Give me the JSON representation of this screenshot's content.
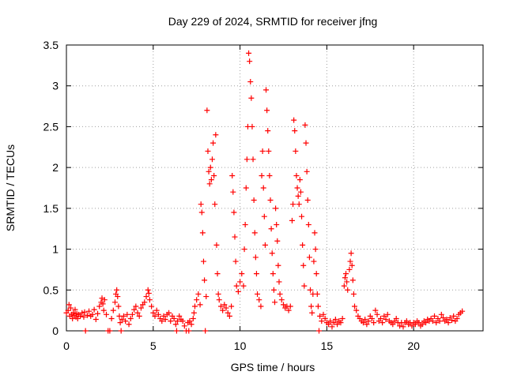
{
  "chart_data": {
    "type": "scatter",
    "title": "Day 229 of 2024, SRMTID for receiver jfng",
    "xlabel": "GPS time / hours",
    "ylabel": "SRMTID / TECUs",
    "xlim": [
      0,
      24
    ],
    "ylim": [
      0,
      3.5
    ],
    "xticks": [
      0,
      5,
      10,
      15,
      20
    ],
    "xtick_labels": [
      "0",
      "5",
      "10",
      "15",
      "20"
    ],
    "yticks": [
      0,
      0.5,
      1,
      1.5,
      2,
      2.5,
      3,
      3.5
    ],
    "ytick_labels": [
      "0",
      "0.5",
      "1",
      "1.5",
      "2",
      "2.5",
      "3",
      "3.5"
    ],
    "grid": true,
    "marker": "plus",
    "color": "#ff0000",
    "series": [
      {
        "name": "SRMTID",
        "points": [
          [
            0.0,
            0.22
          ],
          [
            0.1,
            0.25
          ],
          [
            0.15,
            0.32
          ],
          [
            0.2,
            0.18
          ],
          [
            0.25,
            0.28
          ],
          [
            0.3,
            0.2
          ],
          [
            0.35,
            0.15
          ],
          [
            0.4,
            0.22
          ],
          [
            0.45,
            0.19
          ],
          [
            0.5,
            0.26
          ],
          [
            0.55,
            0.17
          ],
          [
            0.6,
            0.21
          ],
          [
            0.65,
            0.15
          ],
          [
            0.7,
            0.2
          ],
          [
            0.8,
            0.18
          ],
          [
            0.9,
            0.22
          ],
          [
            1.0,
            0.17
          ],
          [
            1.05,
            0.23
          ],
          [
            1.1,
            0.0
          ],
          [
            1.2,
            0.19
          ],
          [
            1.3,
            0.24
          ],
          [
            1.4,
            0.18
          ],
          [
            1.5,
            0.2
          ],
          [
            1.6,
            0.26
          ],
          [
            1.7,
            0.14
          ],
          [
            1.8,
            0.21
          ],
          [
            1.9,
            0.3
          ],
          [
            2.0,
            0.35
          ],
          [
            2.05,
            0.4
          ],
          [
            2.1,
            0.33
          ],
          [
            2.15,
            0.25
          ],
          [
            2.2,
            0.38
          ],
          [
            2.3,
            0.2
          ],
          [
            2.4,
            0.0
          ],
          [
            2.5,
            0.0
          ],
          [
            2.6,
            0.15
          ],
          [
            2.7,
            0.25
          ],
          [
            2.8,
            0.35
          ],
          [
            2.85,
            0.45
          ],
          [
            2.9,
            0.5
          ],
          [
            2.95,
            0.42
          ],
          [
            3.0,
            0.3
          ],
          [
            3.05,
            0.18
          ],
          [
            3.1,
            0.1
          ],
          [
            3.15,
            0.0
          ],
          [
            3.2,
            0.14
          ],
          [
            3.3,
            0.18
          ],
          [
            3.4,
            0.12
          ],
          [
            3.5,
            0.2
          ],
          [
            3.6,
            0.08
          ],
          [
            3.7,
            0.15
          ],
          [
            3.8,
            0.2
          ],
          [
            3.9,
            0.26
          ],
          [
            4.0,
            0.3
          ],
          [
            4.1,
            0.22
          ],
          [
            4.2,
            0.18
          ],
          [
            4.3,
            0.28
          ],
          [
            4.4,
            0.32
          ],
          [
            4.5,
            0.35
          ],
          [
            4.6,
            0.42
          ],
          [
            4.7,
            0.5
          ],
          [
            4.75,
            0.46
          ],
          [
            4.8,
            0.38
          ],
          [
            4.9,
            0.3
          ],
          [
            5.0,
            0.22
          ],
          [
            5.1,
            0.18
          ],
          [
            5.2,
            0.25
          ],
          [
            5.3,
            0.2
          ],
          [
            5.4,
            0.15
          ],
          [
            5.5,
            0.12
          ],
          [
            5.6,
            0.18
          ],
          [
            5.7,
            0.14
          ],
          [
            5.8,
            0.2
          ],
          [
            5.9,
            0.22
          ],
          [
            6.0,
            0.12
          ],
          [
            6.1,
            0.18
          ],
          [
            6.2,
            0.15
          ],
          [
            6.3,
            0.08
          ],
          [
            6.35,
            0.0
          ],
          [
            6.4,
            0.12
          ],
          [
            6.5,
            0.18
          ],
          [
            6.6,
            0.14
          ],
          [
            6.7,
            0.12
          ],
          [
            6.8,
            0.06
          ],
          [
            6.9,
            0.0
          ],
          [
            7.0,
            0.1
          ],
          [
            7.05,
            0.0
          ],
          [
            7.1,
            0.12
          ],
          [
            7.2,
            0.08
          ],
          [
            7.3,
            0.15
          ],
          [
            7.35,
            0.22
          ],
          [
            7.4,
            0.3
          ],
          [
            7.5,
            0.38
          ],
          [
            7.6,
            0.45
          ],
          [
            7.7,
            0.32
          ],
          [
            7.75,
            1.55
          ],
          [
            7.8,
            1.45
          ],
          [
            7.85,
            1.2
          ],
          [
            7.9,
            0.85
          ],
          [
            7.95,
            0.62
          ],
          [
            8.0,
            0.0
          ],
          [
            8.05,
            0.42
          ],
          [
            8.1,
            2.7
          ],
          [
            8.15,
            2.2
          ],
          [
            8.2,
            1.95
          ],
          [
            8.25,
            1.8
          ],
          [
            8.3,
            2.0
          ],
          [
            8.35,
            1.85
          ],
          [
            8.4,
            2.1
          ],
          [
            8.45,
            2.3
          ],
          [
            8.5,
            1.9
          ],
          [
            8.55,
            1.55
          ],
          [
            8.6,
            2.4
          ],
          [
            8.65,
            1.05
          ],
          [
            8.7,
            0.7
          ],
          [
            8.75,
            0.45
          ],
          [
            8.8,
            0.38
          ],
          [
            8.9,
            0.3
          ],
          [
            9.0,
            0.25
          ],
          [
            9.1,
            0.32
          ],
          [
            9.2,
            0.28
          ],
          [
            9.3,
            0.22
          ],
          [
            9.4,
            0.18
          ],
          [
            9.5,
            0.3
          ],
          [
            9.55,
            1.9
          ],
          [
            9.6,
            1.7
          ],
          [
            9.65,
            1.45
          ],
          [
            9.7,
            1.15
          ],
          [
            9.75,
            0.85
          ],
          [
            9.8,
            0.55
          ],
          [
            9.9,
            0.48
          ],
          [
            10.0,
            0.6
          ],
          [
            10.1,
            0.7
          ],
          [
            10.2,
            0.55
          ],
          [
            10.25,
            1.0
          ],
          [
            10.3,
            1.3
          ],
          [
            10.35,
            1.75
          ],
          [
            10.4,
            2.1
          ],
          [
            10.45,
            2.5
          ],
          [
            10.5,
            3.4
          ],
          [
            10.55,
            3.3
          ],
          [
            10.6,
            3.05
          ],
          [
            10.65,
            2.85
          ],
          [
            10.7,
            2.5
          ],
          [
            10.75,
            2.1
          ],
          [
            10.8,
            1.6
          ],
          [
            10.85,
            1.2
          ],
          [
            10.9,
            0.9
          ],
          [
            10.95,
            0.7
          ],
          [
            11.0,
            0.45
          ],
          [
            11.1,
            0.38
          ],
          [
            11.2,
            0.3
          ],
          [
            11.25,
            1.9
          ],
          [
            11.3,
            2.2
          ],
          [
            11.35,
            1.75
          ],
          [
            11.4,
            1.4
          ],
          [
            11.45,
            1.05
          ],
          [
            11.5,
            2.95
          ],
          [
            11.55,
            2.7
          ],
          [
            11.6,
            2.45
          ],
          [
            11.65,
            2.2
          ],
          [
            11.7,
            1.9
          ],
          [
            11.75,
            1.6
          ],
          [
            11.8,
            1.25
          ],
          [
            11.85,
            0.95
          ],
          [
            11.9,
            0.7
          ],
          [
            11.95,
            0.5
          ],
          [
            12.0,
            0.35
          ],
          [
            12.05,
            1.5
          ],
          [
            12.1,
            1.3
          ],
          [
            12.15,
            1.1
          ],
          [
            12.2,
            0.8
          ],
          [
            12.25,
            0.6
          ],
          [
            12.3,
            0.45
          ],
          [
            12.4,
            0.38
          ],
          [
            12.5,
            0.32
          ],
          [
            12.6,
            0.28
          ],
          [
            12.7,
            0.3
          ],
          [
            12.8,
            0.25
          ],
          [
            12.9,
            0.3
          ],
          [
            13.0,
            1.35
          ],
          [
            13.05,
            1.55
          ],
          [
            13.1,
            2.58
          ],
          [
            13.15,
            2.45
          ],
          [
            13.2,
            2.2
          ],
          [
            13.25,
            1.9
          ],
          [
            13.3,
            1.75
          ],
          [
            13.35,
            1.65
          ],
          [
            13.4,
            1.55
          ],
          [
            13.45,
            1.85
          ],
          [
            13.5,
            1.7
          ],
          [
            13.55,
            1.4
          ],
          [
            13.6,
            1.05
          ],
          [
            13.65,
            0.8
          ],
          [
            13.7,
            0.55
          ],
          [
            13.75,
            2.52
          ],
          [
            13.8,
            2.3
          ],
          [
            13.85,
            1.95
          ],
          [
            13.9,
            1.6
          ],
          [
            13.95,
            1.3
          ],
          [
            14.0,
            0.9
          ],
          [
            14.05,
            0.5
          ],
          [
            14.1,
            0.3
          ],
          [
            14.15,
            0.22
          ],
          [
            14.2,
            0.45
          ],
          [
            14.25,
            0.85
          ],
          [
            14.3,
            1.2
          ],
          [
            14.35,
            1.0
          ],
          [
            14.4,
            0.7
          ],
          [
            14.45,
            0.45
          ],
          [
            14.5,
            0.3
          ],
          [
            14.55,
            0.0
          ],
          [
            14.6,
            0.18
          ],
          [
            14.7,
            0.12
          ],
          [
            14.8,
            0.2
          ],
          [
            14.9,
            0.15
          ],
          [
            15.0,
            0.1
          ],
          [
            15.1,
            0.08
          ],
          [
            15.2,
            0.12
          ],
          [
            15.3,
            0.05
          ],
          [
            15.4,
            0.1
          ],
          [
            15.5,
            0.14
          ],
          [
            15.6,
            0.08
          ],
          [
            15.7,
            0.12
          ],
          [
            15.8,
            0.1
          ],
          [
            15.9,
            0.15
          ],
          [
            16.0,
            0.55
          ],
          [
            16.05,
            0.65
          ],
          [
            16.1,
            0.7
          ],
          [
            16.15,
            0.6
          ],
          [
            16.2,
            0.5
          ],
          [
            16.3,
            0.75
          ],
          [
            16.35,
            0.85
          ],
          [
            16.4,
            0.95
          ],
          [
            16.45,
            0.8
          ],
          [
            16.5,
            0.62
          ],
          [
            16.55,
            0.45
          ],
          [
            16.6,
            0.3
          ],
          [
            16.7,
            0.25
          ],
          [
            16.8,
            0.18
          ],
          [
            16.9,
            0.15
          ],
          [
            17.0,
            0.12
          ],
          [
            17.1,
            0.1
          ],
          [
            17.2,
            0.14
          ],
          [
            17.3,
            0.08
          ],
          [
            17.4,
            0.12
          ],
          [
            17.5,
            0.18
          ],
          [
            17.6,
            0.15
          ],
          [
            17.7,
            0.1
          ],
          [
            17.8,
            0.25
          ],
          [
            17.9,
            0.2
          ],
          [
            18.0,
            0.12
          ],
          [
            18.1,
            0.15
          ],
          [
            18.2,
            0.1
          ],
          [
            18.3,
            0.18
          ],
          [
            18.4,
            0.14
          ],
          [
            18.5,
            0.2
          ],
          [
            18.6,
            0.12
          ],
          [
            18.7,
            0.1
          ],
          [
            18.8,
            0.08
          ],
          [
            18.9,
            0.12
          ],
          [
            19.0,
            0.15
          ],
          [
            19.1,
            0.1
          ],
          [
            19.2,
            0.06
          ],
          [
            19.3,
            0.1
          ],
          [
            19.4,
            0.05
          ],
          [
            19.5,
            0.1
          ],
          [
            19.6,
            0.12
          ],
          [
            19.7,
            0.08
          ],
          [
            19.8,
            0.1
          ],
          [
            19.9,
            0.06
          ],
          [
            20.0,
            0.1
          ],
          [
            20.1,
            0.08
          ],
          [
            20.2,
            0.12
          ],
          [
            20.3,
            0.1
          ],
          [
            20.4,
            0.06
          ],
          [
            20.5,
            0.08
          ],
          [
            20.6,
            0.12
          ],
          [
            20.7,
            0.1
          ],
          [
            20.8,
            0.14
          ],
          [
            20.9,
            0.12
          ],
          [
            21.0,
            0.15
          ],
          [
            21.1,
            0.12
          ],
          [
            21.2,
            0.18
          ],
          [
            21.3,
            0.1
          ],
          [
            21.4,
            0.15
          ],
          [
            21.5,
            0.12
          ],
          [
            21.6,
            0.2
          ],
          [
            21.7,
            0.16
          ],
          [
            21.8,
            0.12
          ],
          [
            21.9,
            0.14
          ],
          [
            22.0,
            0.1
          ],
          [
            22.1,
            0.16
          ],
          [
            22.2,
            0.13
          ],
          [
            22.3,
            0.18
          ],
          [
            22.4,
            0.12
          ],
          [
            22.5,
            0.15
          ],
          [
            22.6,
            0.2
          ],
          [
            22.7,
            0.22
          ],
          [
            22.8,
            0.24
          ]
        ]
      }
    ]
  }
}
